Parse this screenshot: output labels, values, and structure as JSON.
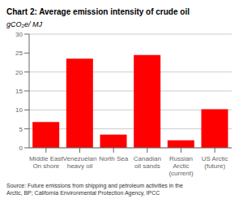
{
  "chart_data": {
    "type": "bar",
    "title": "Chart 2: Average emission intensity of crude oil",
    "ylabel": "gCO₂e/ MJ",
    "categories": [
      "Middle East\nOn shore",
      "Venezuelan\nheavy oil",
      "North Sea",
      "Canadian\noil sands",
      "Russian\nArctic\n(current)",
      "US Arctic\n(future)"
    ],
    "values": [
      6.8,
      23.5,
      3.5,
      24.5,
      2.0,
      10.2
    ],
    "color": "#ff0000",
    "ylim": [
      0,
      30
    ],
    "yticks": [
      0,
      5,
      10,
      15,
      20,
      25,
      30
    ],
    "grid": true,
    "annotations": [
      "Source: Future emissions from shipping and petroleum activities in the\nArctic, BP; California Environmental Protection Agency, IPCC"
    ]
  }
}
